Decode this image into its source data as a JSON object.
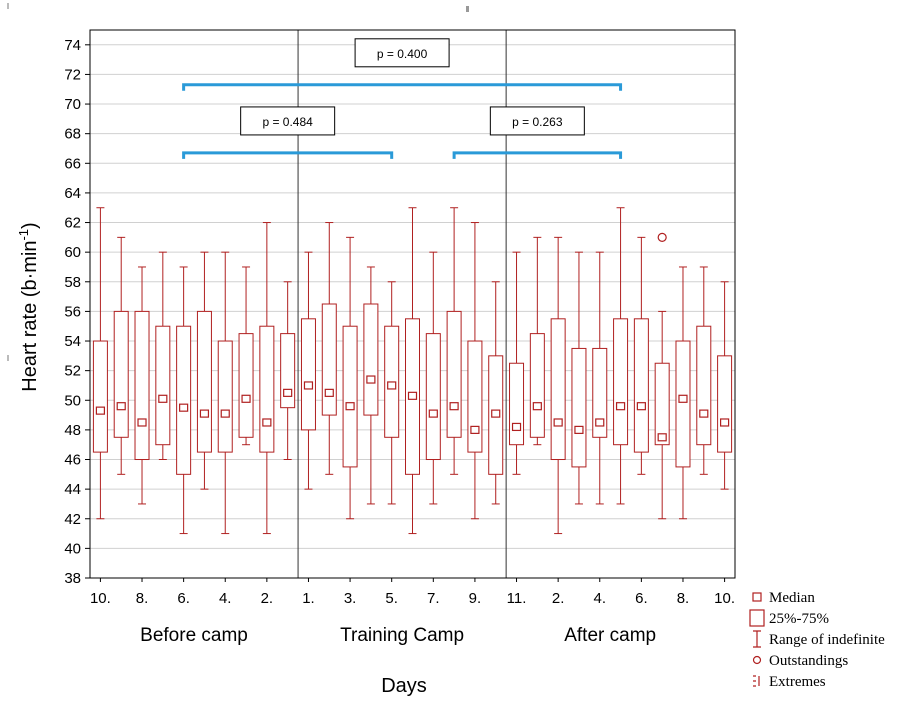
{
  "chart_data": {
    "type": "box",
    "xlabel": "Days",
    "ylabel_main": "Heart rate (b·min",
    "ylabel_sup": "-1",
    "ylabel_tail": ")",
    "ylim": [
      38,
      75
    ],
    "yticks": [
      38,
      40,
      42,
      44,
      46,
      48,
      50,
      52,
      54,
      56,
      58,
      60,
      62,
      64,
      66,
      68,
      70,
      72,
      74
    ],
    "grid": true,
    "groups": [
      {
        "label": "Before camp",
        "start": 0,
        "end": 10
      },
      {
        "label": "Training Camp",
        "start": 10,
        "end": 20
      },
      {
        "label": "After camp",
        "start": 20,
        "end": 30
      }
    ],
    "xtick_labels": [
      "10.",
      "8.",
      "6.",
      "4.",
      "2.",
      "1.",
      "3.",
      "5.",
      "7.",
      "9.",
      "11.",
      "2.",
      "4.",
      "6.",
      "8.",
      "10."
    ],
    "boxes": [
      {
        "min": 42,
        "q1": 46.5,
        "median": 49.3,
        "q3": 54,
        "max": 63
      },
      {
        "min": 45,
        "q1": 47.5,
        "median": 49.6,
        "q3": 56,
        "max": 61
      },
      {
        "min": 43,
        "q1": 46,
        "median": 48.5,
        "q3": 56,
        "max": 59
      },
      {
        "min": 46,
        "q1": 47,
        "median": 50.1,
        "q3": 55,
        "max": 60
      },
      {
        "min": 41,
        "q1": 45,
        "median": 49.5,
        "q3": 55,
        "max": 59
      },
      {
        "min": 44,
        "q1": 46.5,
        "median": 49.1,
        "q3": 56,
        "max": 60
      },
      {
        "min": 41,
        "q1": 46.5,
        "median": 49.1,
        "q3": 54,
        "max": 60
      },
      {
        "min": 47,
        "q1": 47.5,
        "median": 50.1,
        "q3": 54.5,
        "max": 59
      },
      {
        "min": 41,
        "q1": 46.5,
        "median": 48.5,
        "q3": 55,
        "max": 62
      },
      {
        "min": 46,
        "q1": 49.5,
        "median": 50.5,
        "q3": 54.5,
        "max": 58
      },
      {
        "min": 44,
        "q1": 48,
        "median": 51,
        "q3": 55.5,
        "max": 60
      },
      {
        "min": 45,
        "q1": 49,
        "median": 50.5,
        "q3": 56.5,
        "max": 62
      },
      {
        "min": 42,
        "q1": 45.5,
        "median": 49.6,
        "q3": 55,
        "max": 61
      },
      {
        "min": 43,
        "q1": 49,
        "median": 51.4,
        "q3": 56.5,
        "max": 59
      },
      {
        "min": 43,
        "q1": 47.5,
        "median": 51,
        "q3": 55,
        "max": 58
      },
      {
        "min": 41,
        "q1": 45,
        "median": 50.3,
        "q3": 55.5,
        "max": 63
      },
      {
        "min": 43,
        "q1": 46,
        "median": 49.1,
        "q3": 54.5,
        "max": 60
      },
      {
        "min": 45,
        "q1": 47.5,
        "median": 49.6,
        "q3": 56,
        "max": 63
      },
      {
        "min": 42,
        "q1": 46.5,
        "median": 48,
        "q3": 54,
        "max": 62
      },
      {
        "min": 43,
        "q1": 45,
        "median": 49.1,
        "q3": 53,
        "max": 58
      },
      {
        "min": 45,
        "q1": 47,
        "median": 48.2,
        "q3": 52.5,
        "max": 60
      },
      {
        "min": 47,
        "q1": 47.5,
        "median": 49.6,
        "q3": 54.5,
        "max": 61
      },
      {
        "min": 41,
        "q1": 46,
        "median": 48.5,
        "q3": 55.5,
        "max": 61
      },
      {
        "min": 43,
        "q1": 45.5,
        "median": 48,
        "q3": 53.5,
        "max": 60
      },
      {
        "min": 43,
        "q1": 47.5,
        "median": 48.5,
        "q3": 53.5,
        "max": 60
      },
      {
        "min": 43,
        "q1": 47,
        "median": 49.6,
        "q3": 55.5,
        "max": 63
      },
      {
        "min": 45,
        "q1": 46.5,
        "median": 49.6,
        "q3": 55.5,
        "max": 61
      },
      {
        "min": 42,
        "q1": 47,
        "median": 47.5,
        "q3": 52.5,
        "max": 56,
        "outliers": [
          61
        ]
      },
      {
        "min": 42,
        "q1": 45.5,
        "median": 50.1,
        "q3": 54,
        "max": 59
      },
      {
        "min": 45,
        "q1": 47,
        "median": 49.1,
        "q3": 55,
        "max": 59
      },
      {
        "min": 44,
        "q1": 46.5,
        "median": 48.5,
        "q3": 53,
        "max": 58
      }
    ],
    "annotations": [
      {
        "text": "p = 0.400",
        "from": 4,
        "to": 25,
        "y": 71.3
      },
      {
        "text": "p = 0.484",
        "from": 4,
        "to": 14,
        "y": 66.7
      },
      {
        "text": "p = 0.263",
        "from": 17,
        "to": 25,
        "y": 66.7
      }
    ],
    "legend": {
      "position": "bottom-right",
      "items": [
        {
          "key": "median",
          "label": "Median"
        },
        {
          "key": "box",
          "label": "25%-75%"
        },
        {
          "key": "range",
          "label": "Range of indefinite"
        },
        {
          "key": "outlier",
          "label": "Outstandings"
        },
        {
          "key": "extreme",
          "label": "Extremes"
        }
      ]
    },
    "colors": {
      "box": "#b02020",
      "bracket": "#2a9ad8",
      "grid": "#d0d0d0",
      "divider": "#333333",
      "text": "#000000"
    }
  }
}
